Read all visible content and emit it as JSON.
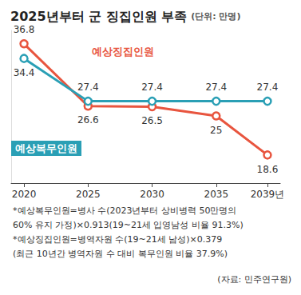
{
  "chart_data": {
    "type": "line",
    "title": "2025년부터 군 징집인원 부족",
    "subtitle": "(단위: 만명)",
    "x": [
      2020,
      2025,
      2030,
      2035,
      2039
    ],
    "series": [
      {
        "name": "예상징집인원",
        "color": "#e8553f",
        "values": [
          36.8,
          26.6,
          26.5,
          25.0,
          18.6
        ],
        "marker": "circle"
      },
      {
        "name": "예상복무인원",
        "color": "#2a9fb5",
        "values": [
          34.4,
          27.4,
          27.4,
          27.4,
          27.4
        ],
        "marker": "circle"
      }
    ],
    "xlim": [
      2019,
      2040
    ],
    "xticks": [
      2020,
      2025,
      2030,
      2035,
      {
        "value": 2039,
        "label": "2039년"
      }
    ],
    "ylim": [
      14,
      39
    ],
    "tick_labels": "x",
    "grid": false,
    "data_labels": true,
    "notes": [
      "*예상복무인원=병사 수(2023년부터 상비병력 50만명의",
      "60% 유지 가정)×0.913(19~21세 입영남성 비율 91.3%)",
      "*예상징집인원=병역자원 수(19~21세 남성)×0.379",
      "(최근 10년간 병역자원 수 대비 복무인원 비율 37.9%)"
    ],
    "source": "(자료: 민주연구원)"
  }
}
